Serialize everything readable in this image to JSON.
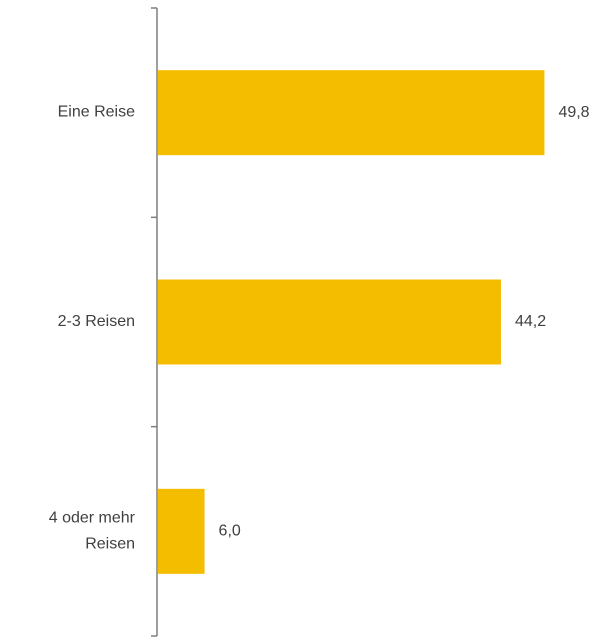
{
  "chart_data": {
    "type": "bar",
    "orientation": "horizontal",
    "title": "",
    "xlabel": "",
    "ylabel": "",
    "categories": [
      [
        "Eine Reise"
      ],
      [
        "2-3 Reisen"
      ],
      [
        "4 oder mehr",
        "Reisen"
      ]
    ],
    "values": [
      49.8,
      44.2,
      6.0
    ],
    "value_labels": [
      "49,8",
      "44,2",
      "6,0"
    ],
    "xlim": [
      0,
      50
    ],
    "grid": false,
    "legend": "none",
    "colors": {
      "bar": "#F5BD00",
      "axis": "#7F7F7F",
      "text": "#404040"
    }
  }
}
